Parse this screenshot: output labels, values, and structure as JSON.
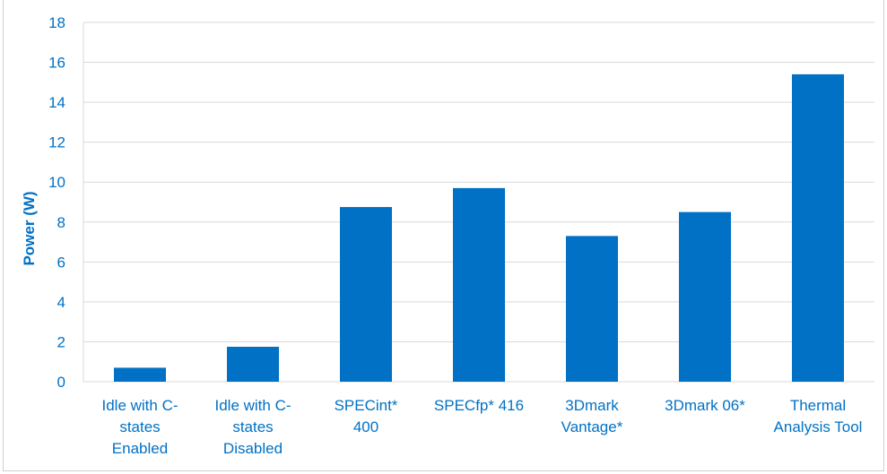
{
  "chart_data": {
    "type": "bar",
    "categories": [
      [
        "Idle with C-",
        "states",
        "Enabled"
      ],
      [
        "Idle with C-",
        "states",
        "Disabled"
      ],
      [
        "SPECint*",
        "400"
      ],
      [
        "SPECfp* 416"
      ],
      [
        "3Dmark",
        "Vantage*"
      ],
      [
        "3Dmark 06*"
      ],
      [
        "Thermal",
        "Analysis Tool"
      ]
    ],
    "values": [
      0.7,
      1.75,
      8.75,
      9.7,
      7.3,
      8.5,
      15.4
    ],
    "xlabel": "",
    "ylabel": "Power (W)",
    "ylim": [
      0,
      18
    ],
    "yticks": [
      0,
      2,
      4,
      6,
      8,
      10,
      12,
      14,
      16,
      18
    ],
    "grid": true,
    "bar_color": "#0071c5",
    "grid_color": "#d9d9d9",
    "text_color": "#0071c5"
  }
}
